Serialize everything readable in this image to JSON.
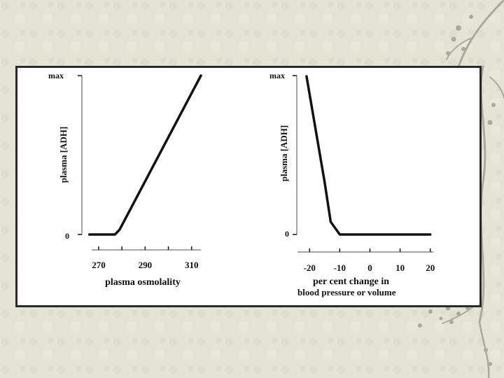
{
  "slide": {
    "background_color": "#e4e4d4",
    "branch_color": "#a9ab9c"
  },
  "chart_data": [
    {
      "type": "line",
      "xlabel": "plasma osmolality",
      "ylabel": "plasma [ADH]",
      "y_tick_labels": [
        "0",
        "max"
      ],
      "x_tick_labels": [
        "270",
        "290",
        "310"
      ],
      "x_tick_values": [
        270,
        290,
        310
      ],
      "x_minor_ticks": [
        270,
        280,
        290,
        300,
        310
      ],
      "xlim": [
        267,
        314
      ],
      "ylim": [
        0,
        1
      ],
      "series": [
        {
          "x": [
            266,
            277,
            279,
            314
          ],
          "y": [
            0,
            0,
            0.03,
            1
          ],
          "color": "#111111"
        }
      ]
    },
    {
      "type": "line",
      "xlabel": "per cent change in",
      "xlabel_line2": "blood pressure or volume",
      "ylabel": "plasma [ADH]",
      "y_tick_labels": [
        "0",
        "max"
      ],
      "x_tick_labels": [
        "-20",
        "-10",
        "0",
        "10",
        "20"
      ],
      "x_tick_values": [
        -20,
        -10,
        0,
        10,
        20
      ],
      "xlim": [
        -24,
        21
      ],
      "ylim": [
        0,
        1
      ],
      "series": [
        {
          "x": [
            -21,
            -15,
            -13,
            -10,
            20
          ],
          "y": [
            1,
            0.33,
            0.08,
            0,
            0
          ],
          "color": "#111111"
        }
      ]
    }
  ]
}
